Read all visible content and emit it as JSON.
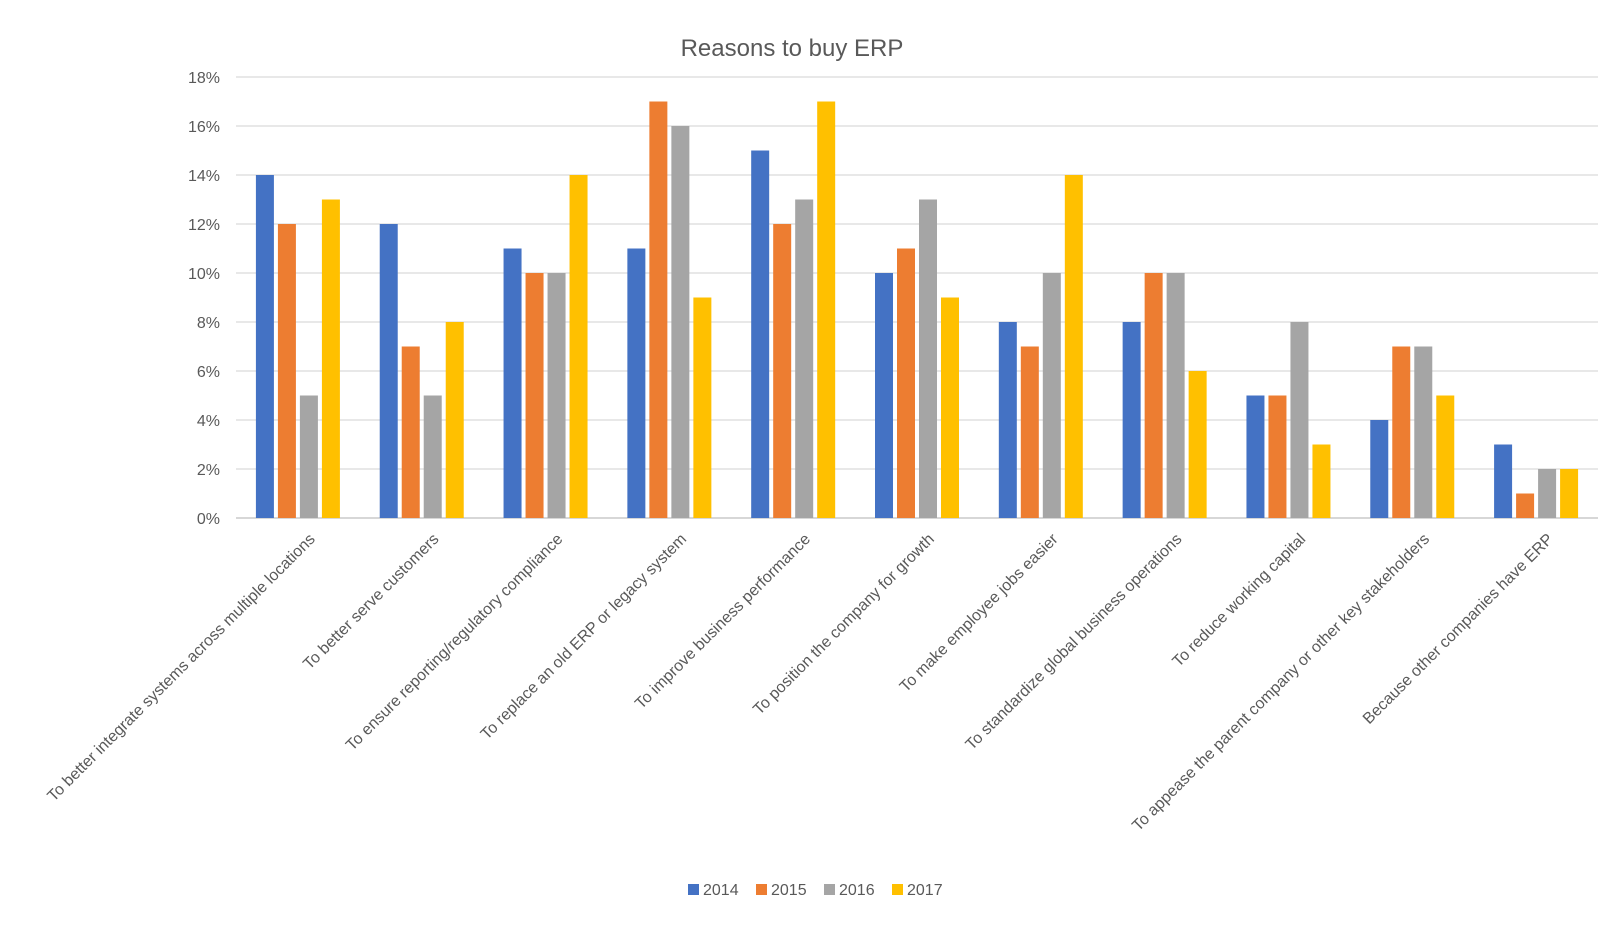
{
  "chart_data": {
    "type": "bar",
    "title": "Reasons to buy ERP",
    "xlabel": "",
    "ylabel": "",
    "ylim": [
      0,
      18
    ],
    "y_ticks": [
      "0%",
      "2%",
      "4%",
      "6%",
      "8%",
      "10%",
      "12%",
      "14%",
      "16%",
      "18%"
    ],
    "y_tick_values": [
      0,
      2,
      4,
      6,
      8,
      10,
      12,
      14,
      16,
      18
    ],
    "grid": true,
    "legend_position": "bottom",
    "categories": [
      "To better integrate systems across multiple locations",
      "To better serve customers",
      "To ensure reporting/regulatory compliance",
      "To replace an old ERP or legacy system",
      "To improve business performance",
      "To position the company for growth",
      "To make employee jobs easier",
      "To standardize global business operations",
      "To reduce working capital",
      "To appease the parent company or other key stakeholders",
      "Because other companies have ERP"
    ],
    "series": [
      {
        "name": "2014",
        "color": "#4472C4",
        "values": [
          14,
          12,
          11,
          11,
          15,
          10,
          8,
          8,
          5,
          4,
          3
        ]
      },
      {
        "name": "2015",
        "color": "#ED7D31",
        "values": [
          12,
          7,
          10,
          17,
          12,
          11,
          7,
          10,
          5,
          7,
          1
        ]
      },
      {
        "name": "2016",
        "color": "#A5A5A5",
        "values": [
          5,
          5,
          10,
          16,
          13,
          13,
          10,
          10,
          8,
          7,
          2
        ]
      },
      {
        "name": "2017",
        "color": "#FFC000",
        "values": [
          13,
          8,
          14,
          9,
          17,
          9,
          14,
          6,
          3,
          5,
          2
        ]
      }
    ]
  }
}
